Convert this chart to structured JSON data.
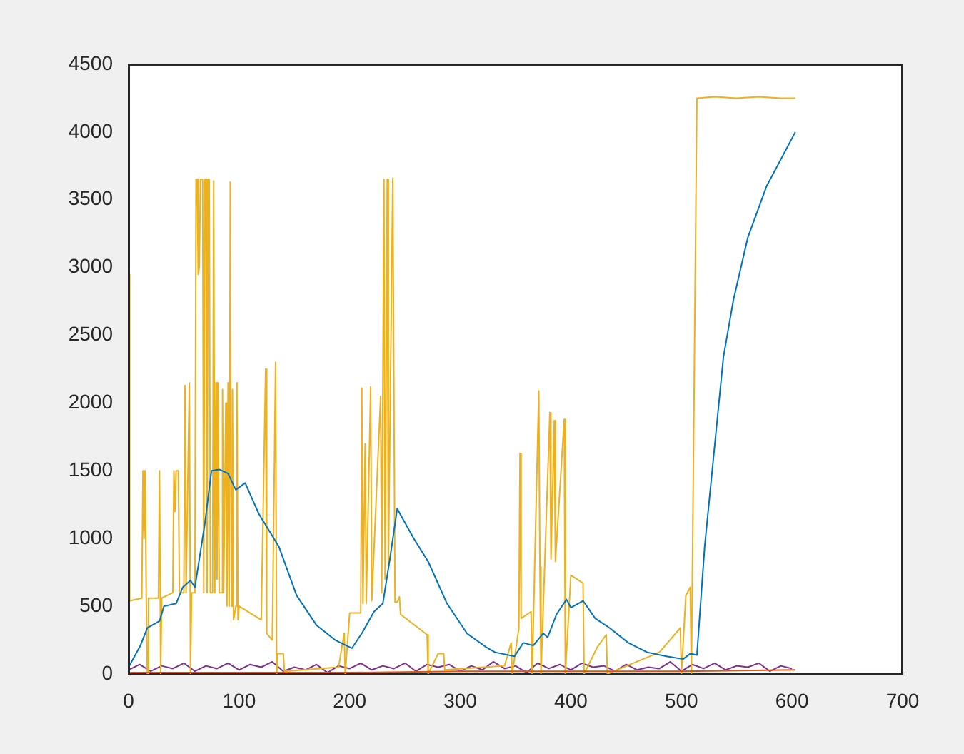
{
  "chart_data": {
    "type": "line",
    "xlim": [
      0,
      700
    ],
    "xticks": [
      0,
      100,
      200,
      300,
      400,
      500,
      600,
      700
    ],
    "ylim": [
      0,
      4500
    ],
    "yticks": [
      0,
      500,
      1000,
      1500,
      2000,
      2500,
      3000,
      3500,
      4000,
      4500
    ],
    "grid": false,
    "legend": false,
    "marker": "none",
    "series": [
      {
        "color": "#0072bd",
        "x": [
          0,
          10.7,
          17,
          28,
          32,
          43,
          49,
          56,
          60,
          69,
          75,
          82,
          90,
          97,
          105.5,
          118,
          136,
          152,
          170,
          187,
          202,
          211,
          222,
          230,
          236,
          243,
          258,
          271,
          288,
          306,
          323,
          331.5,
          349,
          357,
          366,
          375,
          379,
          387,
          396,
          400,
          411,
          422,
          435,
          452,
          469,
          486.5,
          501.5,
          508,
          514,
          521,
          529.5,
          538,
          547,
          560,
          577,
          603
        ],
        "values": [
          50,
          210,
          340,
          390,
          500,
          520,
          640,
          690,
          640,
          1110,
          1500,
          1510,
          1480,
          1360,
          1410,
          1180,
          940,
          580,
          360,
          250,
          190,
          300,
          460,
          520,
          830,
          1220,
          1000,
          830,
          520,
          300,
          200,
          160,
          130,
          230,
          210,
          300,
          270,
          440,
          550,
          490,
          540,
          410,
          340,
          230,
          160,
          130,
          110,
          150,
          140,
          940,
          1640,
          2340,
          2760,
          3220,
          3600,
          4000
        ]
      },
      {
        "color": "#d95319",
        "x": [
          0,
          100,
          200,
          300,
          400,
          500,
          603
        ],
        "values": [
          10,
          10,
          10,
          20,
          20,
          20,
          30
        ]
      },
      {
        "color": "#edb120",
        "x": [
          0,
          1,
          12,
          13,
          14,
          15,
          16,
          17,
          18,
          27,
          28,
          29,
          30,
          40,
          41,
          42,
          43,
          45,
          46,
          50,
          51,
          52,
          55,
          56,
          57,
          60,
          61,
          62,
          63,
          64,
          65,
          67,
          68,
          69,
          70,
          71,
          72,
          73,
          74,
          76,
          77,
          78,
          79,
          80,
          81,
          82,
          84,
          85,
          86,
          88,
          89,
          90,
          91,
          92,
          93,
          94,
          95,
          97,
          98,
          99,
          100,
          110,
          120,
          124,
          125,
          130,
          133,
          134,
          135,
          140,
          141,
          190,
          195,
          196,
          200,
          210,
          211,
          212,
          214,
          215,
          219,
          220,
          228,
          229,
          231,
          232,
          234,
          235,
          239,
          240,
          241,
          243,
          245,
          246,
          270,
          271,
          280,
          285,
          286,
          340,
          346,
          347,
          353,
          354,
          355,
          364,
          365,
          371,
          372,
          373,
          381,
          382,
          385,
          386,
          394,
          395,
          400,
          411,
          412,
          424,
          432,
          433,
          480,
          499,
          500,
          504,
          508,
          509,
          514,
          530,
          550,
          570,
          590,
          603
        ],
        "values": [
          2950,
          540,
          560,
          1500,
          1000,
          1500,
          560,
          0,
          560,
          560,
          1500,
          0,
          560,
          600,
          1500,
          1200,
          1500,
          1500,
          600,
          600,
          2130,
          600,
          2150,
          0,
          600,
          600,
          3650,
          3650,
          2950,
          3000,
          3650,
          3650,
          600,
          3650,
          3650,
          600,
          3650,
          3650,
          600,
          600,
          3640,
          600,
          2150,
          700,
          2150,
          600,
          600,
          2100,
          600,
          2000,
          500,
          2150,
          500,
          3630,
          500,
          2100,
          400,
          500,
          2150,
          400,
          500,
          450,
          400,
          2250,
          300,
          250,
          2300,
          0,
          150,
          150,
          20,
          50,
          300,
          0,
          450,
          450,
          2110,
          520,
          1700,
          520,
          2120,
          540,
          2050,
          600,
          3650,
          700,
          3650,
          800,
          3660,
          3660,
          530,
          530,
          570,
          440,
          290,
          0,
          150,
          150,
          30,
          60,
          230,
          0,
          340,
          1630,
          410,
          460,
          0,
          2090,
          790,
          0,
          1930,
          850,
          1870,
          830,
          1880,
          0,
          730,
          670,
          0,
          200,
          290,
          0,
          160,
          340,
          0,
          580,
          640,
          0,
          4250,
          4260,
          4250,
          4260,
          4250,
          4250
        ]
      },
      {
        "color": "#7e2f8e",
        "x": [
          0,
          10,
          20,
          30,
          40,
          50,
          60,
          70,
          80,
          90,
          100,
          110,
          120,
          130,
          140,
          150,
          160,
          170,
          180,
          190,
          200,
          210,
          220,
          230,
          240,
          250,
          260,
          270,
          280,
          290,
          300,
          310,
          320,
          330,
          340,
          350,
          360,
          370,
          380,
          390,
          400,
          410,
          420,
          430,
          440,
          450,
          460,
          470,
          480,
          490,
          500,
          510,
          520,
          530,
          540,
          550,
          560,
          570,
          580,
          590,
          600
        ],
        "values": [
          30,
          70,
          20,
          60,
          40,
          80,
          20,
          60,
          40,
          80,
          30,
          70,
          50,
          90,
          20,
          50,
          30,
          70,
          10,
          60,
          40,
          80,
          30,
          60,
          40,
          80,
          20,
          70,
          50,
          70,
          20,
          60,
          30,
          90,
          40,
          60,
          10,
          80,
          40,
          70,
          30,
          80,
          50,
          60,
          20,
          70,
          30,
          50,
          40,
          90,
          20,
          70,
          40,
          80,
          30,
          60,
          50,
          80,
          20,
          60,
          40
        ]
      }
    ]
  }
}
